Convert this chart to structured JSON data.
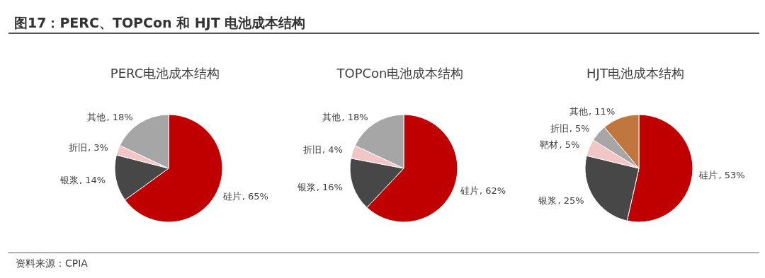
{
  "chart_data": [
    {
      "type": "pie",
      "title": "PERC电池成本结构",
      "annotations": [
        "图17：PERC、TOPCon 和 HJT 电池成本结构"
      ],
      "categories": [
        "硅片",
        "银浆",
        "折旧",
        "其他"
      ],
      "values": [
        65,
        14,
        3,
        18
      ],
      "colors": [
        "#c00000",
        "#474747",
        "#f2c6c6",
        "#a6a6a6"
      ],
      "value_labels": [
        ", 65%",
        ", 14%",
        ", 3%",
        ", 18%"
      ]
    },
    {
      "type": "pie",
      "title": "TOPCon电池成本结构",
      "categories": [
        "硅片",
        "银浆",
        "折旧",
        "其他"
      ],
      "values": [
        62,
        16,
        4,
        18
      ],
      "colors": [
        "#c00000",
        "#474747",
        "#f2c6c6",
        "#a6a6a6"
      ],
      "value_labels": [
        ", 62%",
        ", 16%",
        ", 4%",
        ", 18%"
      ]
    },
    {
      "type": "pie",
      "title": "HJT电池成本结构",
      "annotations": [
        "资料来源：CPIA"
      ],
      "categories": [
        "硅片",
        "银浆",
        "靶材",
        "折旧",
        "其他"
      ],
      "values": [
        53,
        25,
        5,
        5,
        11
      ],
      "colors": [
        "#c00000",
        "#474747",
        "#f2c6c6",
        "#a6a6a6",
        "#c0773f"
      ],
      "value_labels": [
        ", 53%",
        ", 25%",
        ", 5%",
        ", 5%",
        ", 11%"
      ]
    }
  ]
}
